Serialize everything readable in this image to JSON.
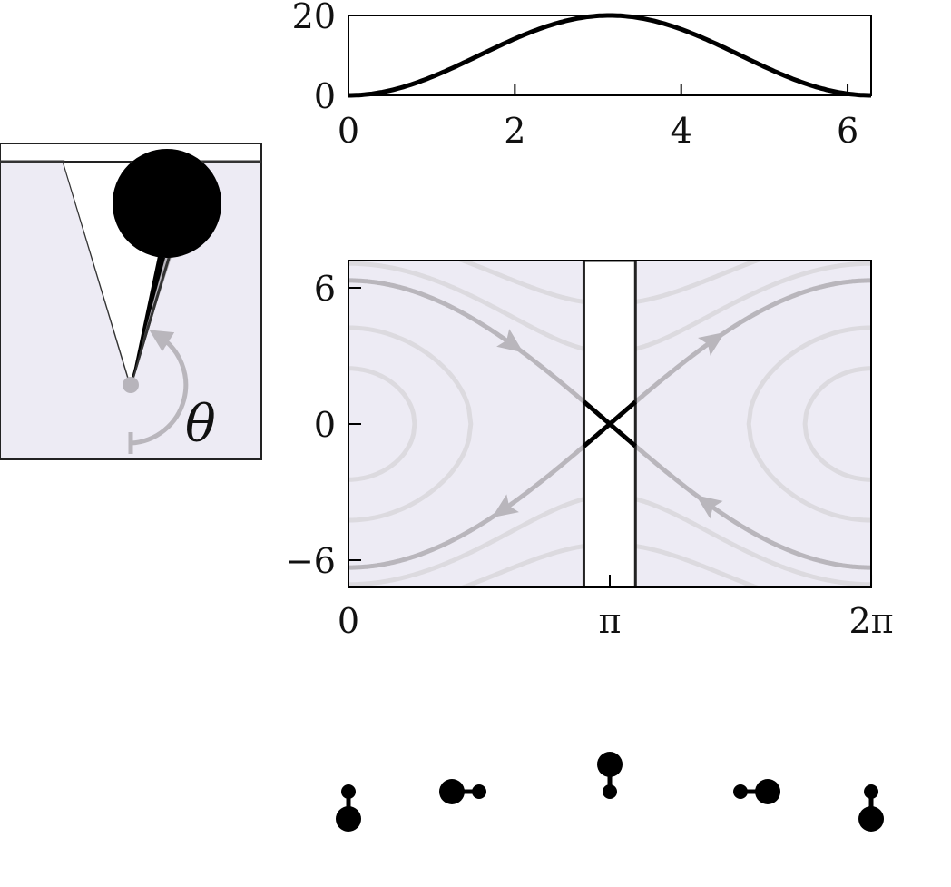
{
  "colors": {
    "ink": "#000000",
    "frame": "#333333",
    "region_fill": "#edebf4",
    "separatrix": "#b9b6bc",
    "contour": "#dcdadf",
    "ghost_bob": "#b7b4bb"
  },
  "pendulum_schematic": {
    "angle_symbol": "θ",
    "icons": [
      "pivot-icon",
      "bob-icon",
      "ghost-bob-icon",
      "angle-arrow-icon"
    ]
  },
  "chart_data": [
    {
      "type": "line",
      "title": "",
      "xlabel": "",
      "ylabel": "",
      "xlim": [
        0,
        6.283
      ],
      "ylim": [
        0,
        20
      ],
      "x_ticks": [
        "0",
        "2",
        "4",
        "6"
      ],
      "y_ticks": [
        "0",
        "20"
      ],
      "series": [
        {
          "formula": "10*(1 - cos(x))",
          "x": [
            0,
            0.5,
            1,
            1.5,
            2,
            2.5,
            3,
            3.14,
            3.5,
            4,
            4.5,
            5,
            5.5,
            6,
            6.28
          ],
          "y": [
            0,
            1.2,
            4.6,
            9.3,
            14.2,
            18.0,
            19.9,
            20.0,
            19.4,
            16.5,
            12.1,
            7.2,
            2.9,
            0.4,
            0
          ]
        }
      ]
    },
    {
      "type": "line",
      "subtype": "phase-portrait",
      "title": "",
      "xlabel": "",
      "ylabel": "",
      "xlim": [
        0,
        6.283
      ],
      "ylim": [
        -7.2,
        7.2
      ],
      "x_ticks": [
        "0",
        "π",
        "2π"
      ],
      "y_ticks": [
        "−6",
        "0",
        "6"
      ],
      "energy_scale": 10,
      "highlight_band": [
        2.83,
        3.45
      ],
      "separatrix_energy": 20,
      "contour_energies": [
        3,
        9,
        25,
        34
      ],
      "separatrix_arrows": [
        {
          "x": 1.98,
          "branch": "upper",
          "direction": "right"
        },
        {
          "x": 4.3,
          "branch": "lower",
          "direction": "right"
        },
        {
          "x": 4.4,
          "branch": "upper-rising",
          "direction": "up"
        },
        {
          "x": 1.85,
          "branch": "lower-falling",
          "direction": "down"
        }
      ]
    }
  ],
  "pendulum_states": [
    {
      "angle_deg": 0,
      "label": "hanging-down"
    },
    {
      "angle_deg": 90,
      "label": "horizontal-left"
    },
    {
      "angle_deg": 180,
      "label": "inverted-up"
    },
    {
      "angle_deg": 270,
      "label": "horizontal-right"
    },
    {
      "angle_deg": 360,
      "label": "hanging-down"
    }
  ]
}
